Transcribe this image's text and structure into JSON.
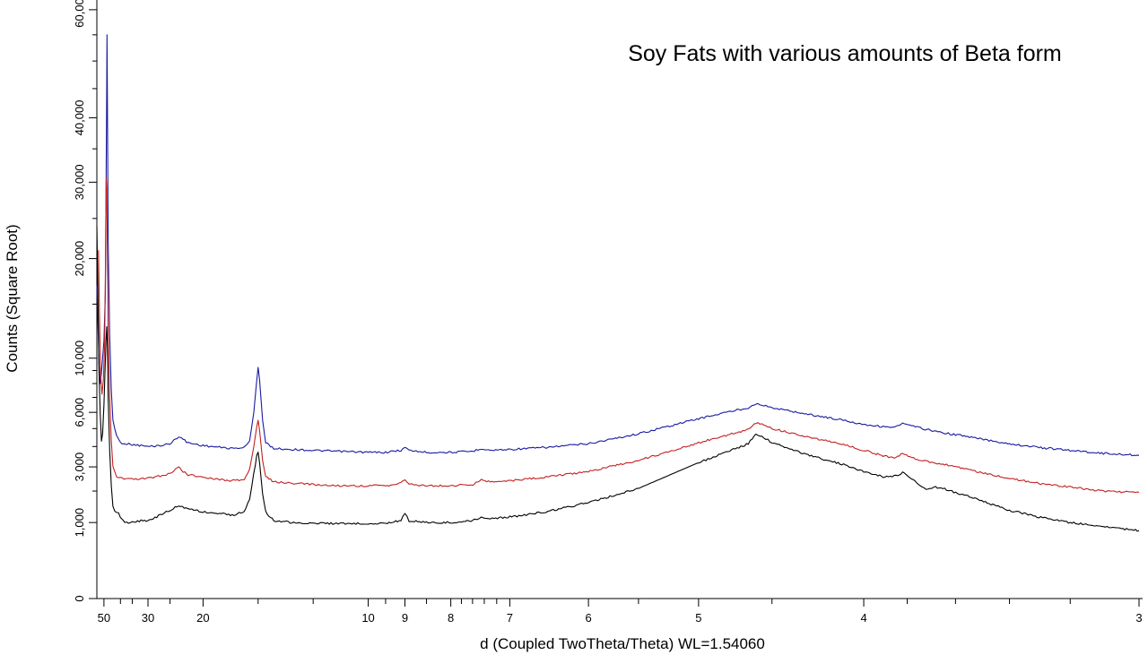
{
  "chart_data": {
    "type": "line",
    "title": "Soy Fats with various amounts of Beta form",
    "xlabel": "d (Coupled TwoTheta/Theta) WL=1.54060",
    "ylabel": "Counts (Square Root)",
    "x_scale": "reciprocal",
    "y_scale": "sqrt",
    "xlim": [
      56,
      3
    ],
    "ylim": [
      0,
      62000
    ],
    "grid": false,
    "legend": "none",
    "x_ticks": [
      {
        "value": 50,
        "label": "50"
      },
      {
        "value": 30,
        "label": "30"
      },
      {
        "value": 20,
        "label": "20"
      },
      {
        "value": 10,
        "label": "10"
      },
      {
        "value": 9,
        "label": "9"
      },
      {
        "value": 8,
        "label": "8"
      },
      {
        "value": 7,
        "label": "7"
      },
      {
        "value": 6,
        "label": "6"
      },
      {
        "value": 5,
        "label": "5"
      },
      {
        "value": 4,
        "label": "4"
      },
      {
        "value": 3,
        "label": "3"
      }
    ],
    "x_minor_ticks": [
      40,
      35,
      25,
      15,
      12,
      9.5,
      8.5,
      7.8,
      7.6,
      7.4,
      7.2,
      5.5,
      4.5,
      3.8,
      3.6,
      3.4,
      3.2
    ],
    "y_ticks": [
      {
        "value": 0,
        "label": "0"
      },
      {
        "value": 1000,
        "label": "1,000"
      },
      {
        "value": 3000,
        "label": "3,000"
      },
      {
        "value": 6000,
        "label": "6,000"
      },
      {
        "value": 10000,
        "label": "10,000"
      },
      {
        "value": 20000,
        "label": "20,000"
      },
      {
        "value": 30000,
        "label": "30,000"
      },
      {
        "value": 40000,
        "label": "40,000"
      },
      {
        "value": 60000,
        "label": "60,000"
      }
    ],
    "y_minor_ticks": [
      2000,
      4000,
      5000,
      7000,
      8000,
      9000,
      15000,
      25000,
      35000,
      45000,
      50000,
      55000
    ],
    "series": [
      {
        "color": "#1a1aa0",
        "points": [
          [
            56,
            17000
          ],
          [
            54,
            9500
          ],
          [
            53,
            8000
          ],
          [
            52,
            8800
          ],
          [
            50,
            11500
          ],
          [
            49,
            16000
          ],
          [
            48.5,
            28000
          ],
          [
            48,
            45000
          ],
          [
            47.8,
            55000
          ],
          [
            47.5,
            42000
          ],
          [
            47,
            22000
          ],
          [
            46,
            12000
          ],
          [
            45,
            7500
          ],
          [
            44,
            5500
          ],
          [
            42,
            4600
          ],
          [
            40,
            4200
          ],
          [
            35,
            4100
          ],
          [
            32,
            4050
          ],
          [
            30,
            4000
          ],
          [
            27,
            4050
          ],
          [
            25,
            4150
          ],
          [
            24,
            4400
          ],
          [
            23.5,
            4550
          ],
          [
            23,
            4450
          ],
          [
            22,
            4200
          ],
          [
            20,
            4050
          ],
          [
            18,
            3950
          ],
          [
            17,
            3900
          ],
          [
            16,
            3950
          ],
          [
            15.6,
            4300
          ],
          [
            15.3,
            6000
          ],
          [
            15.1,
            8200
          ],
          [
            15,
            9300
          ],
          [
            14.9,
            8300
          ],
          [
            14.7,
            5500
          ],
          [
            14.5,
            4200
          ],
          [
            14,
            3900
          ],
          [
            13,
            3850
          ],
          [
            12,
            3800
          ],
          [
            11,
            3750
          ],
          [
            10,
            3700
          ],
          [
            9.5,
            3700
          ],
          [
            9.1,
            3800
          ],
          [
            9,
            3950
          ],
          [
            8.9,
            3800
          ],
          [
            8.5,
            3700
          ],
          [
            8,
            3700
          ],
          [
            7.6,
            3750
          ],
          [
            7.45,
            3900
          ],
          [
            7.3,
            3800
          ],
          [
            7,
            3850
          ],
          [
            6.5,
            3950
          ],
          [
            6,
            4150
          ],
          [
            5.5,
            4700
          ],
          [
            5,
            5600
          ],
          [
            4.8,
            6000
          ],
          [
            4.65,
            6300
          ],
          [
            4.6,
            6600
          ],
          [
            4.55,
            6450
          ],
          [
            4.5,
            6300
          ],
          [
            4.3,
            5900
          ],
          [
            4.1,
            5500
          ],
          [
            4,
            5250
          ],
          [
            3.9,
            5100
          ],
          [
            3.85,
            5100
          ],
          [
            3.82,
            5300
          ],
          [
            3.78,
            5150
          ],
          [
            3.7,
            4900
          ],
          [
            3.65,
            4750
          ],
          [
            3.6,
            4650
          ],
          [
            3.5,
            4400
          ],
          [
            3.4,
            4150
          ],
          [
            3.3,
            3950
          ],
          [
            3.2,
            3800
          ],
          [
            3.1,
            3650
          ],
          [
            3,
            3550
          ]
        ]
      },
      {
        "color": "#c42020",
        "points": [
          [
            54.5,
            21000
          ],
          [
            53.5,
            13000
          ],
          [
            52.5,
            8500
          ],
          [
            51.5,
            7200
          ],
          [
            50.5,
            8200
          ],
          [
            49.5,
            11000
          ],
          [
            49,
            17000
          ],
          [
            48.6,
            25000
          ],
          [
            48.3,
            30500
          ],
          [
            48,
            29000
          ],
          [
            47.5,
            20000
          ],
          [
            47,
            12000
          ],
          [
            46,
            7000
          ],
          [
            45,
            4300
          ],
          [
            44,
            3000
          ],
          [
            42,
            2600
          ],
          [
            40,
            2500
          ],
          [
            35,
            2450
          ],
          [
            30,
            2500
          ],
          [
            27,
            2600
          ],
          [
            25,
            2700
          ],
          [
            24,
            2900
          ],
          [
            23.5,
            2980
          ],
          [
            23,
            2850
          ],
          [
            22,
            2650
          ],
          [
            20,
            2550
          ],
          [
            18,
            2450
          ],
          [
            17,
            2400
          ],
          [
            16,
            2450
          ],
          [
            15.6,
            2900
          ],
          [
            15.3,
            4000
          ],
          [
            15.1,
            5100
          ],
          [
            15,
            5500
          ],
          [
            14.9,
            4900
          ],
          [
            14.7,
            3300
          ],
          [
            14.5,
            2600
          ],
          [
            14,
            2350
          ],
          [
            13,
            2300
          ],
          [
            12,
            2250
          ],
          [
            11,
            2200
          ],
          [
            10,
            2200
          ],
          [
            9.5,
            2200
          ],
          [
            9.1,
            2300
          ],
          [
            9,
            2450
          ],
          [
            8.9,
            2280
          ],
          [
            8.5,
            2200
          ],
          [
            8,
            2200
          ],
          [
            7.6,
            2250
          ],
          [
            7.45,
            2450
          ],
          [
            7.3,
            2350
          ],
          [
            7,
            2400
          ],
          [
            6.5,
            2550
          ],
          [
            6,
            2800
          ],
          [
            5.5,
            3300
          ],
          [
            5,
            4200
          ],
          [
            4.8,
            4600
          ],
          [
            4.65,
            4950
          ],
          [
            4.6,
            5350
          ],
          [
            4.55,
            5200
          ],
          [
            4.5,
            5000
          ],
          [
            4.3,
            4550
          ],
          [
            4.1,
            4100
          ],
          [
            4,
            3800
          ],
          [
            3.9,
            3500
          ],
          [
            3.85,
            3450
          ],
          [
            3.82,
            3650
          ],
          [
            3.78,
            3450
          ],
          [
            3.72,
            3250
          ],
          [
            3.68,
            3180
          ],
          [
            3.65,
            3150
          ],
          [
            3.6,
            3000
          ],
          [
            3.5,
            2750
          ],
          [
            3.4,
            2500
          ],
          [
            3.3,
            2300
          ],
          [
            3.2,
            2150
          ],
          [
            3.1,
            2000
          ],
          [
            3,
            1950
          ]
        ]
      },
      {
        "color": "#000000",
        "points": [
          [
            56,
            24000
          ],
          [
            55,
            16000
          ],
          [
            54,
            9000
          ],
          [
            53,
            6000
          ],
          [
            52,
            4300
          ],
          [
            51,
            4700
          ],
          [
            50,
            6500
          ],
          [
            49.2,
            9000
          ],
          [
            48.5,
            11500
          ],
          [
            48,
            12800
          ],
          [
            47.5,
            11000
          ],
          [
            47,
            7000
          ],
          [
            46,
            3800
          ],
          [
            45,
            2200
          ],
          [
            44,
            1500
          ],
          [
            43,
            1300
          ],
          [
            41,
            1250
          ],
          [
            40,
            1150
          ],
          [
            38,
            1000
          ],
          [
            35,
            1000
          ],
          [
            32,
            1050
          ],
          [
            30,
            1050
          ],
          [
            27,
            1200
          ],
          [
            25,
            1350
          ],
          [
            23.5,
            1500
          ],
          [
            22,
            1400
          ],
          [
            20,
            1300
          ],
          [
            18,
            1250
          ],
          [
            17,
            1200
          ],
          [
            16,
            1300
          ],
          [
            15.6,
            1700
          ],
          [
            15.3,
            2700
          ],
          [
            15.1,
            3500
          ],
          [
            15,
            3700
          ],
          [
            14.9,
            3200
          ],
          [
            14.7,
            1900
          ],
          [
            14.5,
            1300
          ],
          [
            14,
            1050
          ],
          [
            13,
            1000
          ],
          [
            12,
            980
          ],
          [
            11,
            970
          ],
          [
            10,
            980
          ],
          [
            9.5,
            980
          ],
          [
            9.1,
            1050
          ],
          [
            9,
            1250
          ],
          [
            8.9,
            1050
          ],
          [
            8.5,
            1000
          ],
          [
            8,
            1000
          ],
          [
            7.6,
            1050
          ],
          [
            7.45,
            1150
          ],
          [
            7.3,
            1100
          ],
          [
            7,
            1150
          ],
          [
            6.5,
            1300
          ],
          [
            6,
            1600
          ],
          [
            5.5,
            2100
          ],
          [
            5,
            3200
          ],
          [
            4.8,
            3700
          ],
          [
            4.65,
            4150
          ],
          [
            4.6,
            4700
          ],
          [
            4.55,
            4500
          ],
          [
            4.5,
            4200
          ],
          [
            4.3,
            3600
          ],
          [
            4.1,
            3100
          ],
          [
            4,
            2800
          ],
          [
            3.9,
            2550
          ],
          [
            3.85,
            2600
          ],
          [
            3.82,
            2750
          ],
          [
            3.78,
            2500
          ],
          [
            3.72,
            2050
          ],
          [
            3.68,
            2150
          ],
          [
            3.65,
            2100
          ],
          [
            3.6,
            1950
          ],
          [
            3.5,
            1650
          ],
          [
            3.4,
            1350
          ],
          [
            3.3,
            1150
          ],
          [
            3.2,
            1000
          ],
          [
            3.1,
            900
          ],
          [
            3,
            800
          ]
        ]
      }
    ]
  }
}
